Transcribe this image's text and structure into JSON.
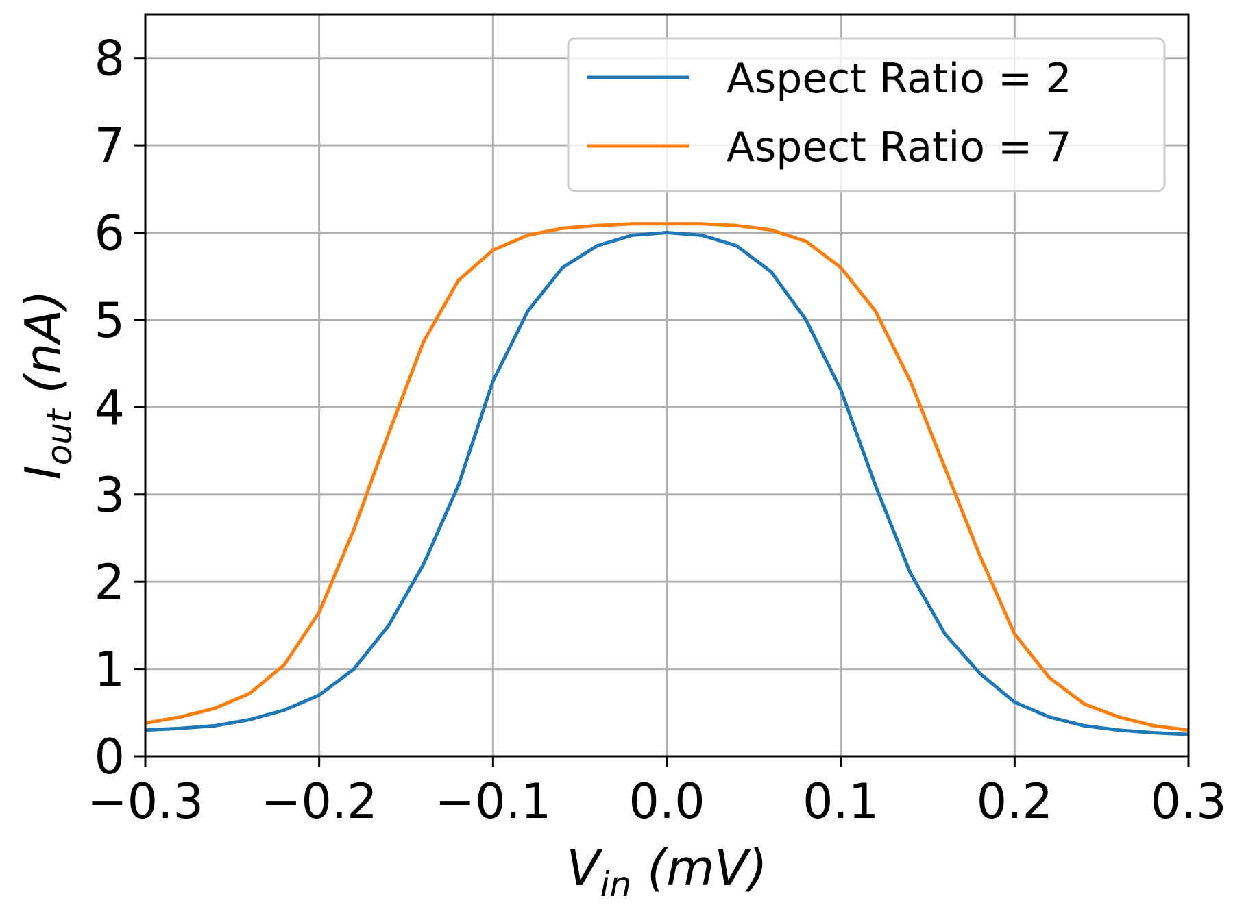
{
  "chart_data": {
    "type": "line",
    "xlabel": {
      "main": "V",
      "sub": "in",
      "unit": " (mV)"
    },
    "ylabel": {
      "main": "I",
      "sub": "out",
      "unit": " (nA)"
    },
    "xlim": [
      -0.3,
      0.3
    ],
    "ylim": [
      0,
      8.5
    ],
    "xticks": [
      -0.3,
      -0.2,
      -0.1,
      0.0,
      0.1,
      0.2,
      0.3
    ],
    "xtick_labels": [
      "−0.3",
      "−0.2",
      "−0.1",
      "0.0",
      "0.1",
      "0.2",
      "0.3"
    ],
    "yticks": [
      0,
      1,
      2,
      3,
      4,
      5,
      6,
      7,
      8
    ],
    "ytick_labels": [
      "0",
      "1",
      "2",
      "3",
      "4",
      "5",
      "6",
      "7",
      "8"
    ],
    "grid": true,
    "legend_position": "top-right",
    "x": [
      -0.3,
      -0.28,
      -0.26,
      -0.24,
      -0.22,
      -0.2,
      -0.18,
      -0.16,
      -0.14,
      -0.12,
      -0.1,
      -0.08,
      -0.06,
      -0.04,
      -0.02,
      0,
      0.02,
      0.04,
      0.06,
      0.08,
      0.1,
      0.12,
      0.14,
      0.16,
      0.18,
      0.2,
      0.22,
      0.24,
      0.26,
      0.28,
      0.3
    ],
    "series": [
      {
        "name": "Aspect Ratio = 2",
        "color": "#1f77b4",
        "values": [
          0.3,
          0.32,
          0.35,
          0.42,
          0.53,
          0.7,
          1.0,
          1.5,
          2.2,
          3.1,
          4.3,
          5.1,
          5.6,
          5.85,
          5.97,
          6.0,
          5.97,
          5.85,
          5.55,
          5.0,
          4.2,
          3.1,
          2.1,
          1.4,
          0.95,
          0.62,
          0.45,
          0.35,
          0.3,
          0.27,
          0.25
        ]
      },
      {
        "name": "Aspect Ratio = 7",
        "color": "#ff7f0e",
        "values": [
          0.38,
          0.45,
          0.55,
          0.72,
          1.05,
          1.65,
          2.6,
          3.7,
          4.75,
          5.45,
          5.8,
          5.97,
          6.05,
          6.08,
          6.1,
          6.1,
          6.1,
          6.08,
          6.03,
          5.9,
          5.6,
          5.1,
          4.3,
          3.3,
          2.3,
          1.4,
          0.9,
          0.6,
          0.45,
          0.35,
          0.3
        ]
      }
    ]
  }
}
